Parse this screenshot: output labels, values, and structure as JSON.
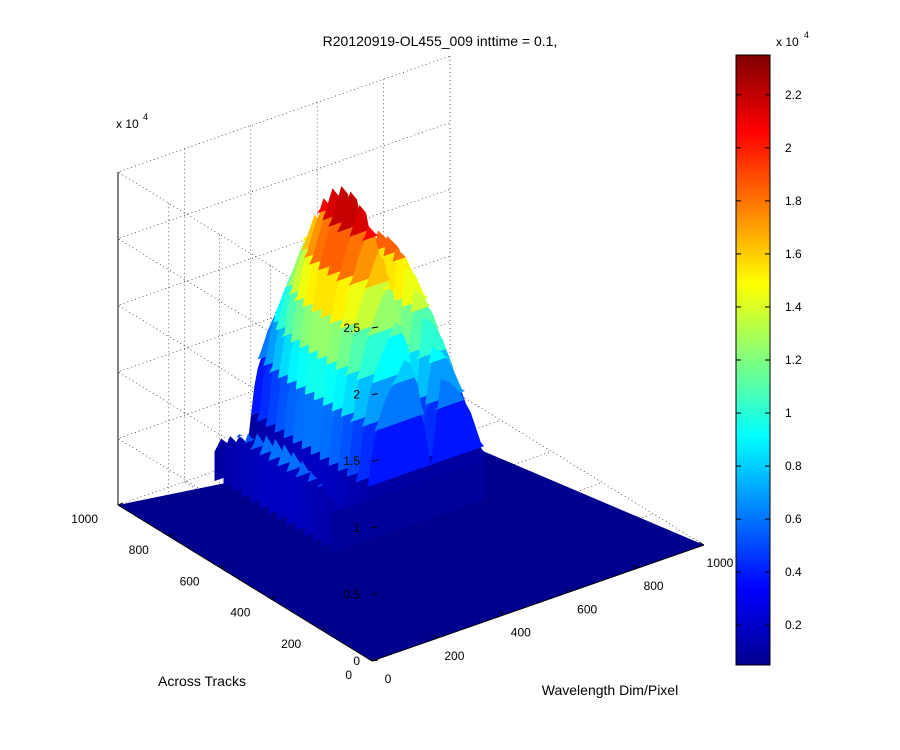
{
  "chart_data": {
    "type": "surface",
    "title": "R20120919-OL455_009 inttime = 0.1,",
    "xlabel": "Wavelength Dim/Pixel",
    "ylabel": "Across Tracks",
    "zlabel": "",
    "x_ticks": [
      "0",
      "200",
      "400",
      "600",
      "800",
      "1000"
    ],
    "y_ticks": [
      "0",
      "200",
      "400",
      "600",
      "800",
      "1000"
    ],
    "z_ticks": [
      "0",
      "0.5",
      "1",
      "1.5",
      "2",
      "2.5"
    ],
    "z_multiplier": "x 10",
    "z_multiplier_exp": "4",
    "xlim": [
      0,
      1000
    ],
    "ylim": [
      0,
      1000
    ],
    "zlim": [
      0,
      25000
    ],
    "grid": true,
    "colormap": "jet",
    "colorbar": {
      "range": [
        500,
        23500
      ],
      "ticks": [
        "0.2",
        "0.4",
        "0.6",
        "0.8",
        "1",
        "1.2",
        "1.4",
        "1.6",
        "1.8",
        "2",
        "2.2"
      ],
      "tick_values": [
        2000,
        4000,
        6000,
        8000,
        10000,
        12000,
        14000,
        16000,
        18000,
        20000,
        22000
      ],
      "multiplier": "x 10",
      "multiplier_exp": "4"
    },
    "surface_extent": {
      "x_range": [
        0,
        1000
      ],
      "y_range": [
        0,
        1000
      ],
      "signal_wavelength_range": [
        260,
        720
      ],
      "signal_across_track_range": [
        500,
        960
      ]
    },
    "peak_profile": [
      {
        "x": 260,
        "z": 4000
      },
      {
        "x": 280,
        "z": 5500
      },
      {
        "x": 300,
        "z": 4500
      },
      {
        "x": 330,
        "z": 800
      },
      {
        "x": 360,
        "z": 3500
      },
      {
        "x": 380,
        "z": 11000
      },
      {
        "x": 400,
        "z": 15500
      },
      {
        "x": 420,
        "z": 18000
      },
      {
        "x": 450,
        "z": 20500
      },
      {
        "x": 480,
        "z": 22800
      },
      {
        "x": 500,
        "z": 22000
      },
      {
        "x": 520,
        "z": 19000
      },
      {
        "x": 540,
        "z": 13000
      },
      {
        "x": 560,
        "z": 7000
      },
      {
        "x": 575,
        "z": 13000
      },
      {
        "x": 590,
        "z": 18500
      },
      {
        "x": 620,
        "z": 17500
      },
      {
        "x": 650,
        "z": 15500
      },
      {
        "x": 680,
        "z": 12500
      },
      {
        "x": 700,
        "z": 9500
      },
      {
        "x": 720,
        "z": 6500
      }
    ]
  }
}
